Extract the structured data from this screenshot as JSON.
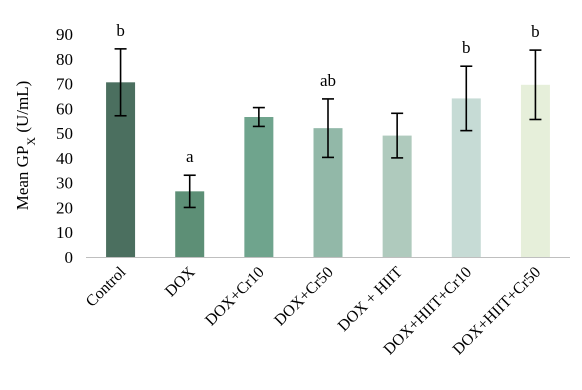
{
  "chart_data": {
    "type": "bar",
    "ylabel": {
      "main": "Mean GP",
      "subscript": "X",
      "unit": " (U/mL)"
    },
    "ylim": [
      0,
      90
    ],
    "yticks": [
      0,
      10,
      20,
      30,
      40,
      50,
      60,
      70,
      80,
      90
    ],
    "grid": false,
    "categories": [
      "Control",
      "DOX",
      "DOX+Cr10",
      "DOX+Cr50",
      "DOX + HIIT",
      "DOX+HIIT+Cr10",
      "DOX+HIIT+Cr50"
    ],
    "values": [
      70.5,
      26.5,
      56.5,
      52,
      49,
      64,
      69.5
    ],
    "errors": [
      13.5,
      6.5,
      3.8,
      11.8,
      9,
      13,
      14
    ],
    "annotations": [
      "b",
      "a",
      "",
      "ab",
      "",
      "b",
      "b"
    ],
    "colors": [
      "#4b6f5f",
      "#5d8f76",
      "#6fa48d",
      "#92b8a8",
      "#afcabd",
      "#c6dbd5",
      "#e6efda"
    ]
  }
}
